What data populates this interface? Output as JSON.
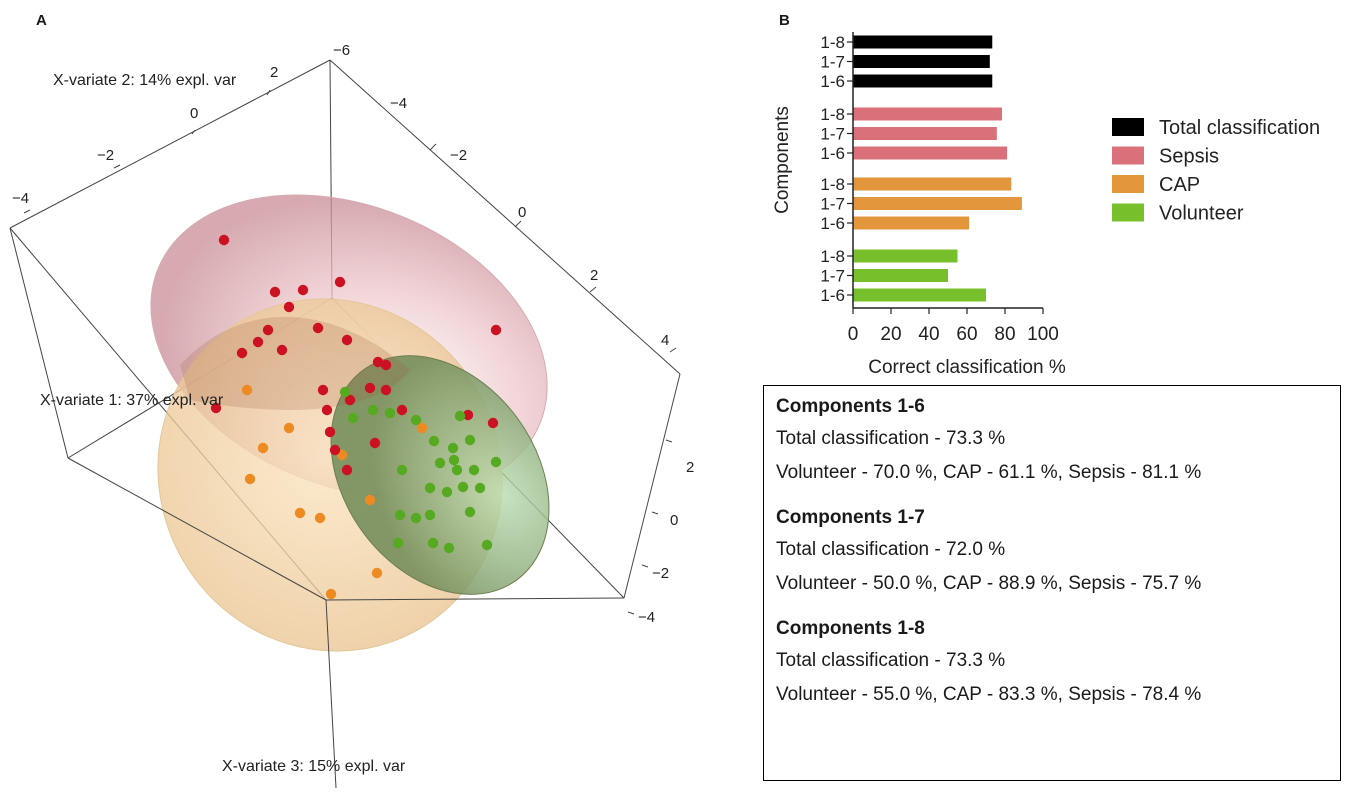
{
  "panelA": {
    "letter": "A",
    "axis_labels": {
      "x1": "X-variate 1: 37% expl. var",
      "x2": "X-variate 2: 14% expl. var",
      "x3": "X-variate 3: 15% expl. var"
    },
    "ticks_x2": [
      "2",
      "0",
      "−2",
      "−4"
    ],
    "ticks_depth": [
      "−6",
      "−4",
      "−2",
      "0",
      "2",
      "4"
    ],
    "ticks_x3": [
      "2",
      "0",
      "−2",
      "−4"
    ],
    "colors": {
      "sepsis": "#cc1122",
      "cap": "#ee8a22",
      "volunteer": "#55aa22"
    }
  },
  "panelB": {
    "letter": "B"
  },
  "chart_data": {
    "type": "bar",
    "orientation": "horizontal",
    "ylabel": "Components",
    "xlabel": "Correct classification %",
    "xlim": [
      0,
      100
    ],
    "xticks": [
      "0",
      "20",
      "40",
      "60",
      "80",
      "100"
    ],
    "groups": [
      {
        "name": "Total classification",
        "color": "#000000",
        "categories": [
          "1-8",
          "1-7",
          "1-6"
        ],
        "values": [
          73.3,
          72.0,
          73.3
        ]
      },
      {
        "name": "Sepsis",
        "color": "#d9707a",
        "categories": [
          "1-8",
          "1-7",
          "1-6"
        ],
        "values": [
          78.4,
          75.7,
          81.1
        ]
      },
      {
        "name": "CAP",
        "color": "#e3963c",
        "categories": [
          "1-8",
          "1-7",
          "1-6"
        ],
        "values": [
          83.3,
          88.9,
          61.1
        ]
      },
      {
        "name": "Volunteer",
        "color": "#77c02c",
        "categories": [
          "1-8",
          "1-7",
          "1-6"
        ],
        "values": [
          55.0,
          50.0,
          70.0
        ]
      }
    ],
    "legend_position": "right"
  },
  "summary": [
    {
      "heading": "Components 1-6",
      "total": "Total classification - 73.3 %",
      "detail": "Volunteer - 70.0 %, CAP - 61.1 %, Sepsis - 81.1 %"
    },
    {
      "heading": "Components 1-7",
      "total": "Total classification - 72.0 %",
      "detail": "Volunteer - 50.0 %, CAP - 88.9 %, Sepsis - 75.7 %"
    },
    {
      "heading": "Components 1-8",
      "total": "Total classification - 73.3 %",
      "detail": "Volunteer - 55.0 %, CAP - 83.3 %, Sepsis - 78.4 %"
    }
  ]
}
